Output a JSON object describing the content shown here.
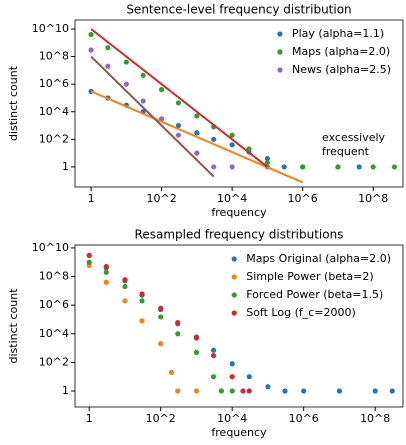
{
  "chart_data": [
    {
      "type": "scatter",
      "title": "Sentence-level frequency distribution",
      "xlabel": "frequency",
      "ylabel": "distinct count",
      "xscale": "log",
      "yscale": "log",
      "xlim": [
        0.35,
        700000000
      ],
      "ylim": [
        0.035,
        45000000000
      ],
      "xticks": [
        1,
        {
          "value": 100,
          "label": "10^2"
        },
        {
          "value": 10000,
          "label": "10^4"
        },
        {
          "value": 1000000,
          "label": "10^6"
        },
        {
          "value": 100000000,
          "label": "10^8"
        }
      ],
      "yticks": [
        1,
        {
          "value": 100,
          "label": "10^2"
        },
        {
          "value": 10000,
          "label": "10^4"
        },
        {
          "value": 1000000,
          "label": "10^6"
        },
        {
          "value": 100000000,
          "label": "10^8"
        },
        {
          "value": 10000000000,
          "label": "10^10"
        }
      ],
      "legend": "upper right",
      "annotation": [
        "excessively",
        "frequent"
      ],
      "series": [
        {
          "name": "Play (alpha=1.1)",
          "color": "#1f77b4",
          "x": [
            1,
            3,
            10,
            30,
            100,
            300,
            1000,
            3000,
            10000,
            30000,
            100000,
            300000,
            1000000,
            10000000,
            40000000
          ],
          "values": [
            300000,
            100000,
            30000,
            10000,
            3000,
            1000,
            300,
            100,
            40,
            12,
            4,
            1,
            1,
            1,
            1
          ]
        },
        {
          "name": "Maps (alpha=2.0)",
          "color": "#2ca02c",
          "x": [
            1,
            3,
            10,
            30,
            100,
            300,
            1000,
            3000,
            10000,
            30000,
            100000,
            1000000,
            10000000,
            100000000,
            400000000
          ],
          "values": [
            4000000000,
            440000000,
            40000000,
            4400000,
            400000,
            44000,
            5000,
            800,
            200,
            20,
            2,
            1,
            1,
            1,
            1
          ]
        },
        {
          "name": "News (alpha=2.5)",
          "color": "#9467bd",
          "x": [
            1,
            3,
            10,
            30,
            100,
            300,
            1000,
            3000,
            10000,
            100000
          ],
          "values": [
            300000000,
            20000000,
            1000000,
            60000,
            3000,
            200,
            10,
            1,
            1,
            1
          ]
        }
      ],
      "fit_lines": [
        {
          "color": "#ff7f0e",
          "x": [
            1,
            1000000
          ],
          "values": [
            300000,
            0.075
          ]
        },
        {
          "color": "#d62728",
          "x": [
            1,
            100000
          ],
          "values": [
            10000000000,
            1
          ]
        },
        {
          "color": "#8c564b",
          "x": [
            1,
            3000
          ],
          "values": [
            100000000,
            0.2
          ]
        }
      ]
    },
    {
      "type": "scatter",
      "title": "Resampled frequency distributions",
      "xlabel": "frequency",
      "ylabel": "distinct count",
      "xscale": "log",
      "yscale": "log",
      "xlim": [
        0.4,
        600000000
      ],
      "ylim": [
        0.076,
        16000000000
      ],
      "xticks": [
        1,
        {
          "value": 100,
          "label": "10^2"
        },
        {
          "value": 10000,
          "label": "10^4"
        },
        {
          "value": 1000000,
          "label": "10^6"
        },
        {
          "value": 100000000,
          "label": "10^8"
        }
      ],
      "yticks": [
        1,
        {
          "value": 100,
          "label": "10^2"
        },
        {
          "value": 10000,
          "label": "10^4"
        },
        {
          "value": 1000000,
          "label": "10^6"
        },
        {
          "value": 100000000,
          "label": "10^8"
        },
        {
          "value": 10000000000,
          "label": "10^10"
        }
      ],
      "legend": "upper right",
      "series": [
        {
          "name": "Maps Original (alpha=2.0)",
          "color": "#1f77b4",
          "x": [
            1,
            3,
            10,
            30,
            100,
            300,
            1000,
            3000,
            10000,
            30000,
            100000,
            300000,
            1000000,
            10000000,
            100000000,
            300000000
          ],
          "values": [
            3000000000,
            400000000,
            50000000,
            5000000,
            500000,
            50000,
            6000,
            700,
            80,
            10,
            2,
            1,
            1,
            1,
            1,
            1
          ]
        },
        {
          "name": "Simple Power (beta=2)",
          "color": "#ff7f0e",
          "x": [
            1,
            3,
            10,
            30,
            100,
            200,
            300,
            1000
          ],
          "values": [
            600000000,
            40000000,
            2000000,
            80000,
            2000,
            20,
            1,
            1
          ]
        },
        {
          "name": "Forced Power (beta=1.5)",
          "color": "#2ca02c",
          "x": [
            1,
            3,
            10,
            30,
            100,
            300,
            1000,
            3000,
            5000,
            10000
          ],
          "values": [
            1000000000,
            200000000,
            20000000,
            2000000,
            150000,
            10000,
            500,
            10,
            1,
            1
          ]
        },
        {
          "name": "Soft Log (f_c=2000)",
          "color": "#d62728",
          "x": [
            1,
            3,
            10,
            30,
            100,
            300,
            1000,
            3000,
            10000,
            20000,
            30000
          ],
          "values": [
            3000000000,
            500000000,
            60000000,
            6000000,
            600000,
            60000,
            5000,
            300,
            10,
            1,
            1
          ]
        }
      ]
    }
  ]
}
